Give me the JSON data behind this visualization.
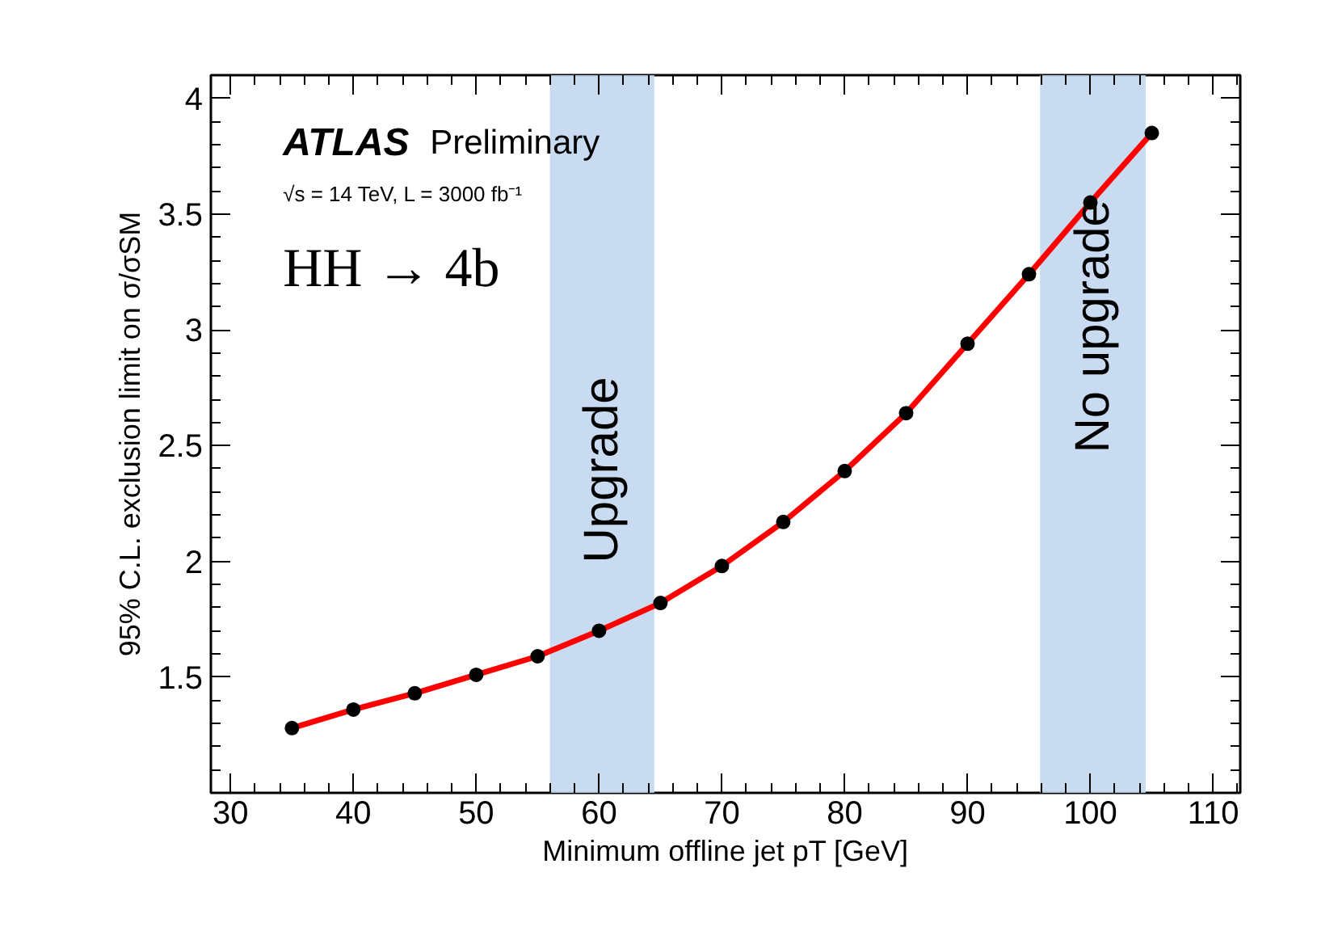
{
  "chart_data": {
    "type": "line",
    "xlabel": "Minimum offline jet pT [GeV]",
    "ylabel": "95% C.L. exclusion limit on σ/σSM",
    "annotations": [
      "ATLAS Preliminary",
      "√s = 14 TeV, L = 3000 fb⁻¹",
      "HH → 4b"
    ],
    "x": [
      35,
      40,
      45,
      50,
      55,
      60,
      65,
      70,
      75,
      80,
      85,
      90,
      95,
      100,
      105
    ],
    "series": [
      {
        "color": "#ff0000",
        "values": [
          1.28,
          1.36,
          1.43,
          1.51,
          1.59,
          1.7,
          1.82,
          1.98,
          2.17,
          2.39,
          2.64,
          2.94,
          3.24,
          3.55,
          3.85
        ]
      }
    ],
    "marker": "circle",
    "line_style": "solid",
    "grid": false,
    "xlim": [
      28.4,
      112.2
    ],
    "ylim": [
      1.0,
      4.1
    ],
    "xticks": [
      30,
      40,
      50,
      60,
      70,
      80,
      90,
      100,
      110
    ],
    "yticks": [
      1.5,
      2,
      2.5,
      3,
      3.5,
      4
    ],
    "bands": [
      {
        "axis": "x",
        "from": 56,
        "to": 64.5,
        "label": "Upgrade",
        "color": "#c3d7ee"
      },
      {
        "axis": "x",
        "from": 95.9,
        "to": 104.5,
        "label": "No upgrade",
        "color": "#c3d7ee"
      }
    ]
  }
}
